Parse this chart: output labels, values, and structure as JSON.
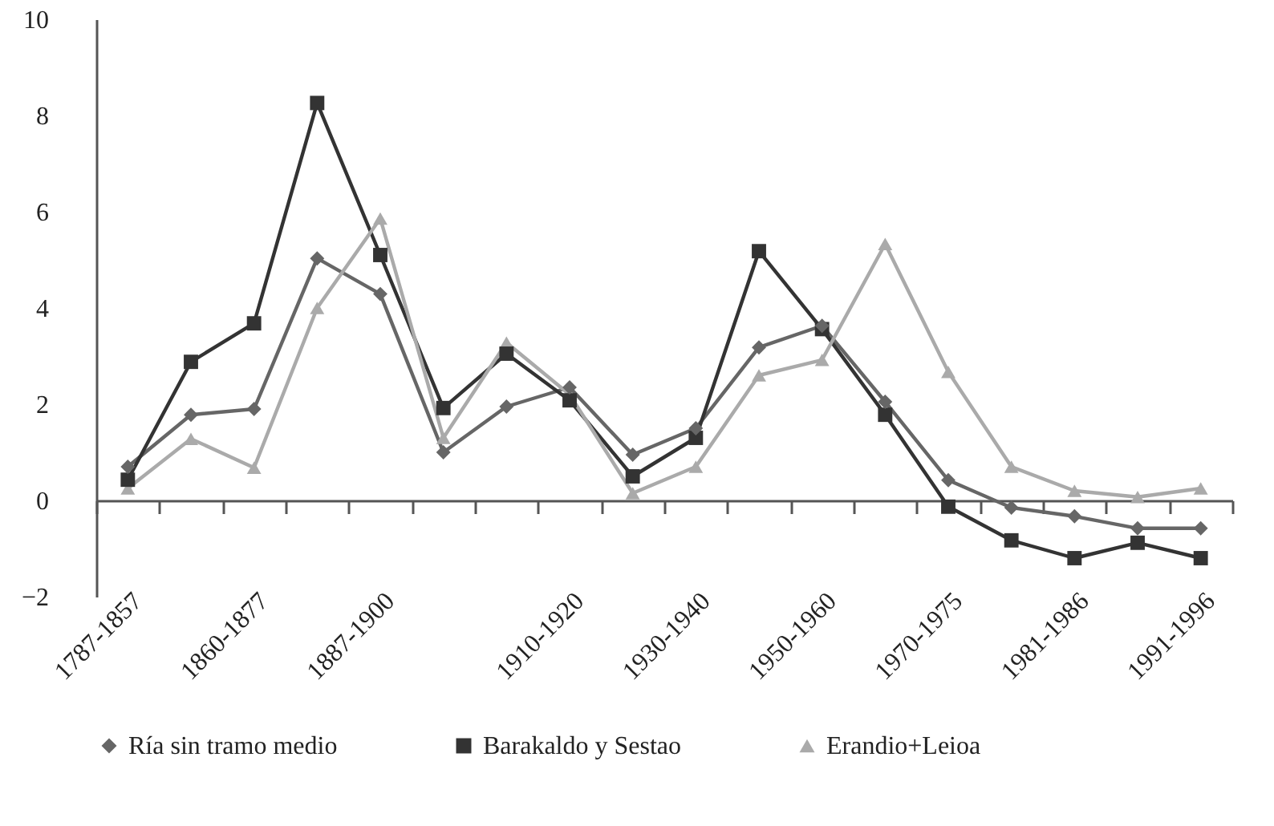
{
  "chart_data": {
    "type": "line",
    "categories": [
      "1787-1857",
      null,
      "1860-1877",
      null,
      "1887-1900",
      null,
      null,
      "1910-1920",
      null,
      "1930-1940",
      null,
      "1950-1960",
      null,
      "1970-1975",
      null,
      "1981-1986",
      null,
      "1991-1996"
    ],
    "ylim": [
      -2,
      10
    ],
    "yticks": [
      -2,
      0,
      2,
      4,
      6,
      8,
      10
    ],
    "legend": "bottom",
    "series": [
      {
        "name": "Ría sin tramo medio",
        "color": "#666666",
        "marker": "diamond",
        "values": [
          0.7,
          1.78,
          1.9,
          5.03,
          4.29,
          1.0,
          1.95,
          2.35,
          0.95,
          1.5,
          3.18,
          3.63,
          2.05,
          0.42,
          -0.15,
          -0.33,
          -0.58,
          -0.58
        ]
      },
      {
        "name": "Barakaldo y Sestao",
        "color": "#333333",
        "marker": "square",
        "values": [
          0.43,
          2.88,
          3.68,
          8.26,
          5.1,
          1.92,
          3.05,
          2.08,
          0.5,
          1.3,
          5.18,
          3.56,
          1.78,
          -0.13,
          -0.83,
          -1.2,
          -0.88,
          -1.2
        ]
      },
      {
        "name": "Erandio+Leioa",
        "color": "#aaaaaa",
        "marker": "triangle",
        "values": [
          0.25,
          1.28,
          0.68,
          4.0,
          5.86,
          1.3,
          3.28,
          2.2,
          0.15,
          0.7,
          2.6,
          2.92,
          5.33,
          2.67,
          0.7,
          0.2,
          0.07,
          0.25
        ]
      }
    ]
  }
}
